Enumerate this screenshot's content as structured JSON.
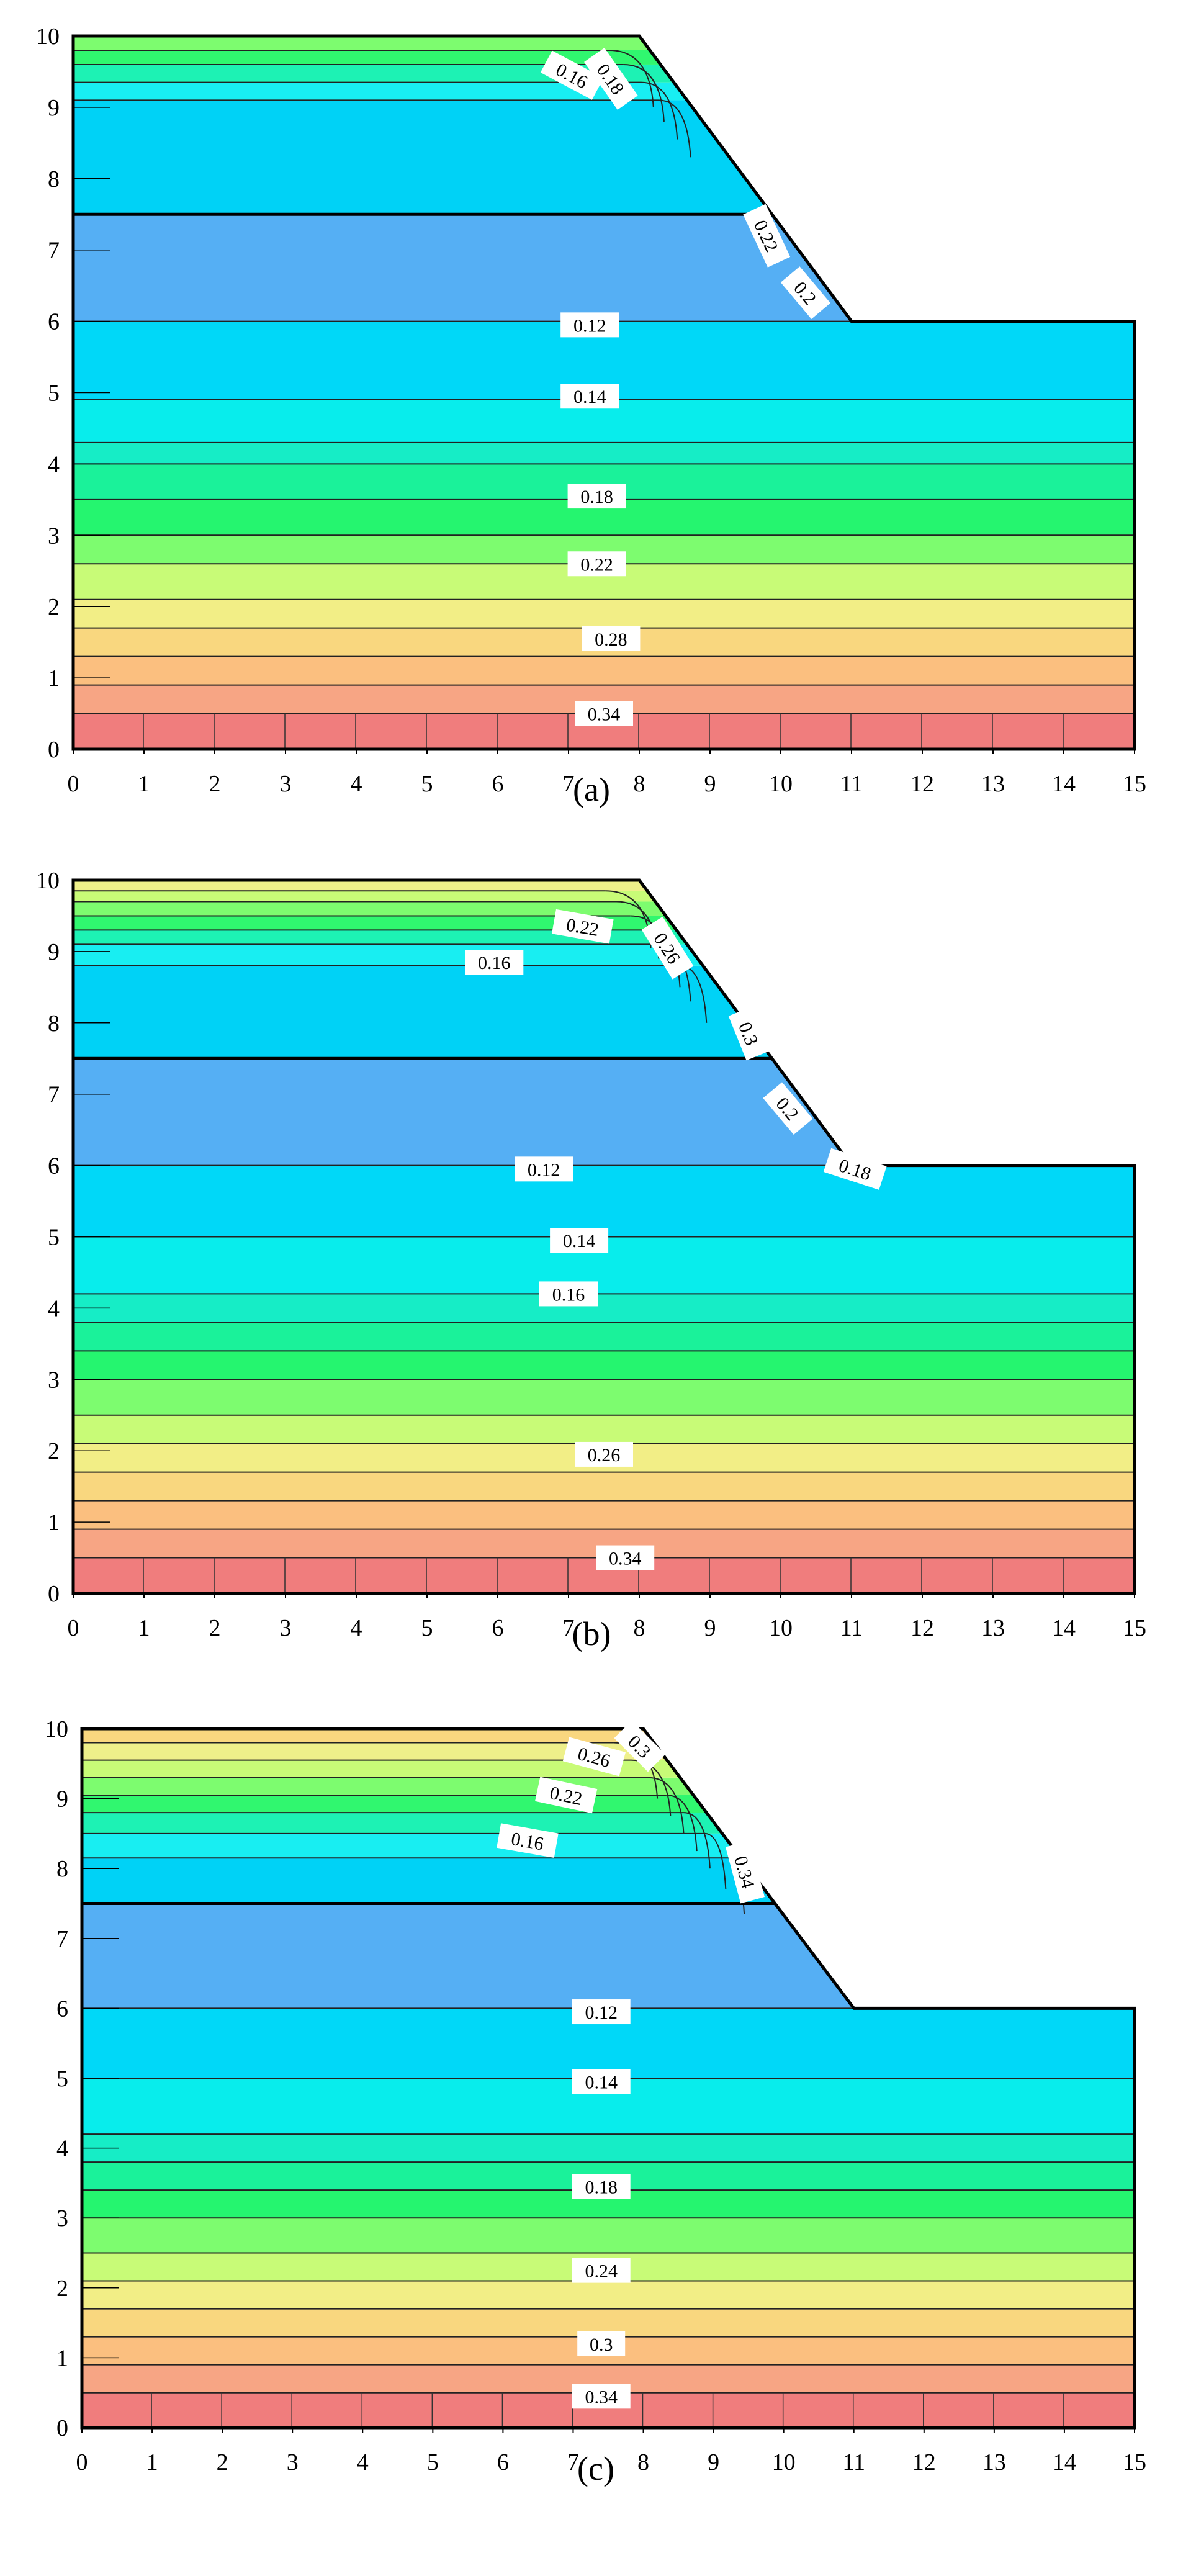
{
  "chart_data": [
    {
      "type": "contour",
      "caption": "(a)",
      "xlim": [
        0,
        15
      ],
      "ylim": [
        0,
        10
      ],
      "x_ticks": [
        0,
        1,
        2,
        3,
        4,
        5,
        6,
        7,
        8,
        9,
        10,
        11,
        12,
        13,
        14,
        15
      ],
      "y_ticks": [
        0,
        1,
        2,
        3,
        4,
        5,
        6,
        7,
        8,
        9,
        10
      ],
      "slope_profile": [
        [
          0,
          10
        ],
        [
          8,
          10
        ],
        [
          11,
          6
        ],
        [
          15,
          6
        ]
      ],
      "layer_interface_y": 7.5,
      "bands": [
        {
          "y0": 0,
          "y1": 0.5,
          "color": "#f07d7d"
        },
        {
          "y0": 0.5,
          "y1": 0.9,
          "color": "#f7a584"
        },
        {
          "y0": 0.9,
          "y1": 1.3,
          "color": "#fbbf7f"
        },
        {
          "y0": 1.3,
          "y1": 1.7,
          "color": "#f9d77f"
        },
        {
          "y0": 1.7,
          "y1": 2.1,
          "color": "#f2ee86"
        },
        {
          "y0": 2.1,
          "y1": 2.6,
          "color": "#c8fb77"
        },
        {
          "y0": 2.6,
          "y1": 3.0,
          "color": "#7dfc6f"
        },
        {
          "y0": 3.0,
          "y1": 3.5,
          "color": "#25f56f"
        },
        {
          "y0": 3.5,
          "y1": 4.0,
          "color": "#1af29a"
        },
        {
          "y0": 4.0,
          "y1": 4.3,
          "color": "#16edc6"
        },
        {
          "y0": 4.3,
          "y1": 4.9,
          "color": "#08edec"
        },
        {
          "y0": 4.9,
          "y1": 6.0,
          "color": "#00d8f8"
        },
        {
          "y0": 6.0,
          "y1": 7.5,
          "color": "#55aff4"
        },
        {
          "y0": 7.5,
          "y1": 9.1,
          "color": "#00d2f6"
        },
        {
          "y0": 9.1,
          "y1": 9.35,
          "color": "#18eef2"
        },
        {
          "y0": 9.35,
          "y1": 9.6,
          "color": "#1df2b4"
        },
        {
          "y0": 9.6,
          "y1": 9.8,
          "color": "#30f76f"
        },
        {
          "y0": 9.8,
          "y1": 10,
          "color": "#7dfc6f"
        }
      ],
      "contours": [
        0.5,
        0.9,
        1.3,
        1.7,
        2.1,
        2.6,
        3.0,
        3.5,
        4.0,
        4.3,
        4.9,
        6.0,
        9.1,
        9.35,
        9.6,
        9.8
      ],
      "labels": [
        {
          "text": "0.16",
          "x": 7.05,
          "y": 9.45,
          "angle": 28
        },
        {
          "text": "0.18",
          "x": 7.6,
          "y": 9.4,
          "angle": 55
        },
        {
          "text": "0.22",
          "x": 9.8,
          "y": 7.2,
          "angle": 65
        },
        {
          "text": "0.2",
          "x": 10.35,
          "y": 6.4,
          "angle": 50
        },
        {
          "text": "0.12",
          "x": 7.3,
          "y": 5.95,
          "angle": 0
        },
        {
          "text": "0.14",
          "x": 7.3,
          "y": 4.95,
          "angle": 0
        },
        {
          "text": "0.18",
          "x": 7.4,
          "y": 3.55,
          "angle": 0
        },
        {
          "text": "0.22",
          "x": 7.4,
          "y": 2.6,
          "angle": 0
        },
        {
          "text": "0.28",
          "x": 7.6,
          "y": 1.55,
          "angle": 0
        },
        {
          "text": "0.34",
          "x": 7.5,
          "y": 0.5,
          "angle": 0
        }
      ]
    },
    {
      "type": "contour",
      "caption": "(b)",
      "xlim": [
        0,
        15
      ],
      "ylim": [
        0,
        10
      ],
      "x_ticks": [
        0,
        1,
        2,
        3,
        4,
        5,
        6,
        7,
        8,
        9,
        10,
        11,
        12,
        13,
        14,
        15
      ],
      "y_ticks": [
        0,
        1,
        2,
        3,
        4,
        5,
        6,
        7,
        8,
        9,
        10
      ],
      "slope_profile": [
        [
          0,
          10
        ],
        [
          8,
          10
        ],
        [
          11,
          6
        ],
        [
          15,
          6
        ]
      ],
      "layer_interface_y": 7.5,
      "bands": [
        {
          "y0": 0,
          "y1": 0.5,
          "color": "#f07d7d"
        },
        {
          "y0": 0.5,
          "y1": 0.9,
          "color": "#f7a584"
        },
        {
          "y0": 0.9,
          "y1": 1.3,
          "color": "#fbbf7f"
        },
        {
          "y0": 1.3,
          "y1": 1.7,
          "color": "#f9d77f"
        },
        {
          "y0": 1.7,
          "y1": 2.1,
          "color": "#f2ee86"
        },
        {
          "y0": 2.1,
          "y1": 2.5,
          "color": "#c8fb77"
        },
        {
          "y0": 2.5,
          "y1": 3.0,
          "color": "#7dfc6f"
        },
        {
          "y0": 3.0,
          "y1": 3.4,
          "color": "#25f56f"
        },
        {
          "y0": 3.4,
          "y1": 3.8,
          "color": "#1af29a"
        },
        {
          "y0": 3.8,
          "y1": 4.2,
          "color": "#16edc6"
        },
        {
          "y0": 4.2,
          "y1": 5.0,
          "color": "#08edec"
        },
        {
          "y0": 5.0,
          "y1": 6.0,
          "color": "#00d8f8"
        },
        {
          "y0": 6.0,
          "y1": 7.5,
          "color": "#55aff4"
        },
        {
          "y0": 7.5,
          "y1": 8.8,
          "color": "#00d2f6"
        },
        {
          "y0": 8.8,
          "y1": 9.1,
          "color": "#18eef2"
        },
        {
          "y0": 9.1,
          "y1": 9.3,
          "color": "#1df2b4"
        },
        {
          "y0": 9.3,
          "y1": 9.5,
          "color": "#30f76f"
        },
        {
          "y0": 9.5,
          "y1": 9.7,
          "color": "#7dfc6f"
        },
        {
          "y0": 9.7,
          "y1": 9.85,
          "color": "#c8fb77"
        },
        {
          "y0": 9.85,
          "y1": 10,
          "color": "#eef08a"
        }
      ],
      "contours": [
        0.5,
        0.9,
        1.3,
        1.7,
        2.1,
        2.5,
        3.0,
        3.4,
        3.8,
        4.2,
        5.0,
        6.0,
        8.8,
        9.1,
        9.3,
        9.5,
        9.7,
        9.85
      ],
      "labels": [
        {
          "text": "0.22",
          "x": 7.2,
          "y": 9.35,
          "angle": 10
        },
        {
          "text": "0.26",
          "x": 8.4,
          "y": 9.05,
          "angle": 58
        },
        {
          "text": "0.16",
          "x": 5.95,
          "y": 8.85,
          "angle": 0
        },
        {
          "text": "0.3",
          "x": 9.55,
          "y": 7.85,
          "angle": 68
        },
        {
          "text": "0.2",
          "x": 10.1,
          "y": 6.8,
          "angle": 50
        },
        {
          "text": "0.18",
          "x": 11.05,
          "y": 5.95,
          "angle": 18
        },
        {
          "text": "0.12",
          "x": 6.65,
          "y": 5.95,
          "angle": 0
        },
        {
          "text": "0.14",
          "x": 7.15,
          "y": 4.95,
          "angle": 0
        },
        {
          "text": "0.16",
          "x": 7.0,
          "y": 4.2,
          "angle": 0
        },
        {
          "text": "0.26",
          "x": 7.5,
          "y": 1.95,
          "angle": 0
        },
        {
          "text": "0.34",
          "x": 7.8,
          "y": 0.5,
          "angle": 0
        }
      ]
    },
    {
      "type": "contour",
      "caption": "(c)",
      "xlim": [
        0,
        15
      ],
      "ylim": [
        0,
        10
      ],
      "x_ticks": [
        0,
        1,
        2,
        3,
        4,
        5,
        6,
        7,
        8,
        9,
        10,
        11,
        12,
        13,
        14,
        15
      ],
      "y_ticks": [
        0,
        1,
        2,
        3,
        4,
        5,
        6,
        7,
        8,
        9,
        10
      ],
      "slope_profile": [
        [
          0,
          10
        ],
        [
          8,
          10
        ],
        [
          11,
          6
        ],
        [
          15,
          6
        ]
      ],
      "layer_interface_y": 7.5,
      "bands": [
        {
          "y0": 0,
          "y1": 0.5,
          "color": "#f07d7d"
        },
        {
          "y0": 0.5,
          "y1": 0.9,
          "color": "#f7a584"
        },
        {
          "y0": 0.9,
          "y1": 1.3,
          "color": "#fbbf7f"
        },
        {
          "y0": 1.3,
          "y1": 1.7,
          "color": "#f9d77f"
        },
        {
          "y0": 1.7,
          "y1": 2.1,
          "color": "#f2ee86"
        },
        {
          "y0": 2.1,
          "y1": 2.5,
          "color": "#c8fb77"
        },
        {
          "y0": 2.5,
          "y1": 3.0,
          "color": "#7dfc6f"
        },
        {
          "y0": 3.0,
          "y1": 3.4,
          "color": "#25f56f"
        },
        {
          "y0": 3.4,
          "y1": 3.8,
          "color": "#1af29a"
        },
        {
          "y0": 3.8,
          "y1": 4.2,
          "color": "#16edc6"
        },
        {
          "y0": 4.2,
          "y1": 5.0,
          "color": "#08edec"
        },
        {
          "y0": 5.0,
          "y1": 6.0,
          "color": "#00d8f8"
        },
        {
          "y0": 6.0,
          "y1": 7.5,
          "color": "#55aff4"
        },
        {
          "y0": 7.5,
          "y1": 8.15,
          "color": "#00d2f6"
        },
        {
          "y0": 8.15,
          "y1": 8.5,
          "color": "#18eef2"
        },
        {
          "y0": 8.5,
          "y1": 8.8,
          "color": "#1df2b4"
        },
        {
          "y0": 8.8,
          "y1": 9.05,
          "color": "#30f76f"
        },
        {
          "y0": 9.05,
          "y1": 9.3,
          "color": "#7dfc6f"
        },
        {
          "y0": 9.3,
          "y1": 9.55,
          "color": "#c8fb77"
        },
        {
          "y0": 9.55,
          "y1": 9.8,
          "color": "#eef08a"
        },
        {
          "y0": 9.8,
          "y1": 10,
          "color": "#f9d77f"
        }
      ],
      "contours": [
        0.5,
        0.9,
        1.3,
        1.7,
        2.1,
        2.5,
        3.0,
        3.4,
        3.8,
        4.2,
        5.0,
        6.0,
        8.15,
        8.5,
        8.8,
        9.05,
        9.3,
        9.55,
        9.8
      ],
      "labels": [
        {
          "text": "0.26",
          "x": 7.3,
          "y": 9.6,
          "angle": 15
        },
        {
          "text": "0.3",
          "x": 7.95,
          "y": 9.75,
          "angle": 45
        },
        {
          "text": "0.22",
          "x": 6.9,
          "y": 9.05,
          "angle": 12
        },
        {
          "text": "0.16",
          "x": 6.35,
          "y": 8.4,
          "angle": 10
        },
        {
          "text": "0.34",
          "x": 9.45,
          "y": 7.95,
          "angle": 75
        },
        {
          "text": "0.12",
          "x": 7.4,
          "y": 5.95,
          "angle": 0
        },
        {
          "text": "0.14",
          "x": 7.4,
          "y": 4.95,
          "angle": 0
        },
        {
          "text": "0.18",
          "x": 7.4,
          "y": 3.45,
          "angle": 0
        },
        {
          "text": "0.24",
          "x": 7.4,
          "y": 2.25,
          "angle": 0
        },
        {
          "text": "0.3",
          "x": 7.4,
          "y": 1.2,
          "angle": 0
        },
        {
          "text": "0.34",
          "x": 7.4,
          "y": 0.45,
          "angle": 0
        }
      ]
    }
  ]
}
